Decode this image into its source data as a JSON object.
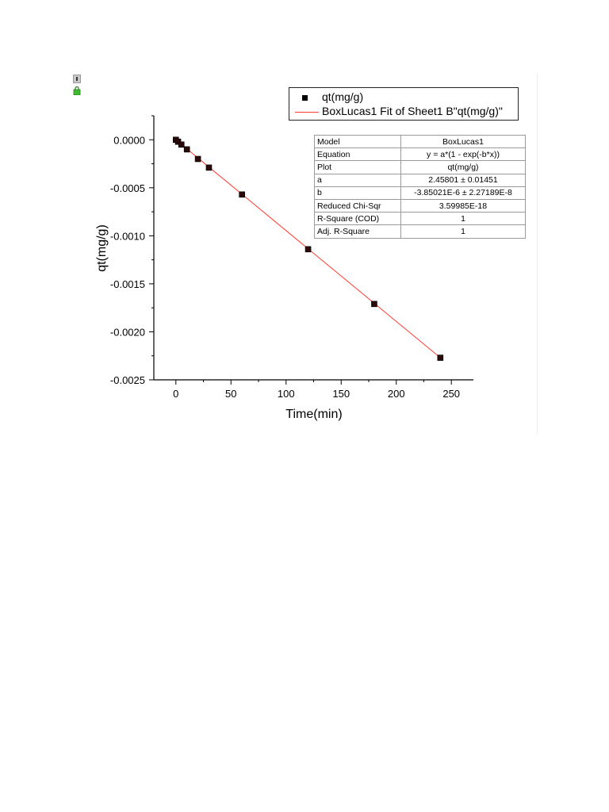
{
  "chart_data": {
    "type": "scatter",
    "xlabel": "Time(min)",
    "ylabel": "qt(mg/g)",
    "xlim": [
      -20,
      270
    ],
    "ylim": [
      -0.0025,
      0.00025
    ],
    "x_ticks": [
      0,
      50,
      100,
      150,
      200,
      250
    ],
    "y_ticks": [
      0.0,
      -0.0005,
      -0.001,
      -0.0015,
      -0.002,
      -0.0025
    ],
    "x_tick_labels": [
      "0",
      "50",
      "100",
      "150",
      "200",
      "250"
    ],
    "y_tick_labels": [
      "0.0000",
      "-0.0005",
      "-0.0010",
      "-0.0015",
      "-0.0020",
      "-0.0025"
    ],
    "grid": false,
    "legend_position": "top-right",
    "series": [
      {
        "name": "qt(mg/g)",
        "kind": "scatter",
        "color": "#000000",
        "marker": "square",
        "points": [
          {
            "x": 0,
            "y": 0.0
          },
          {
            "x": 2,
            "y": -2e-05
          },
          {
            "x": 5,
            "y": -5e-05
          },
          {
            "x": 10,
            "y": -0.0001
          },
          {
            "x": 20,
            "y": -0.0002
          },
          {
            "x": 30,
            "y": -0.00029
          },
          {
            "x": 60,
            "y": -0.00057
          },
          {
            "x": 120,
            "y": -0.00114
          },
          {
            "x": 180,
            "y": -0.00171
          },
          {
            "x": 240,
            "y": -0.00227
          }
        ]
      },
      {
        "name": "BoxLucas1 Fit of Sheet1 B\"qt(mg/g)\"",
        "kind": "line",
        "color": "#ff3b30",
        "points": [
          {
            "x": 0,
            "y": 0.0
          },
          {
            "x": 240,
            "y": -0.00227
          }
        ]
      }
    ],
    "fit_table": [
      {
        "key": "Model",
        "value": "BoxLucas1"
      },
      {
        "key": "Equation",
        "value": "y = a*(1 - exp(-b*x))"
      },
      {
        "key": "Plot",
        "value": "qt(mg/g)"
      },
      {
        "key": "a",
        "value": "2.45801 ± 0.01451"
      },
      {
        "key": "b",
        "value": "-3.85021E-6 ± 2.27189E-8"
      },
      {
        "key": "Reduced Chi-Sqr",
        "value": "3.59985E-18"
      },
      {
        "key": "R-Square (COD)",
        "value": "1"
      },
      {
        "key": "Adj. R-Square",
        "value": "1"
      }
    ]
  },
  "icons": [
    "info-icon",
    "lock-icon"
  ]
}
